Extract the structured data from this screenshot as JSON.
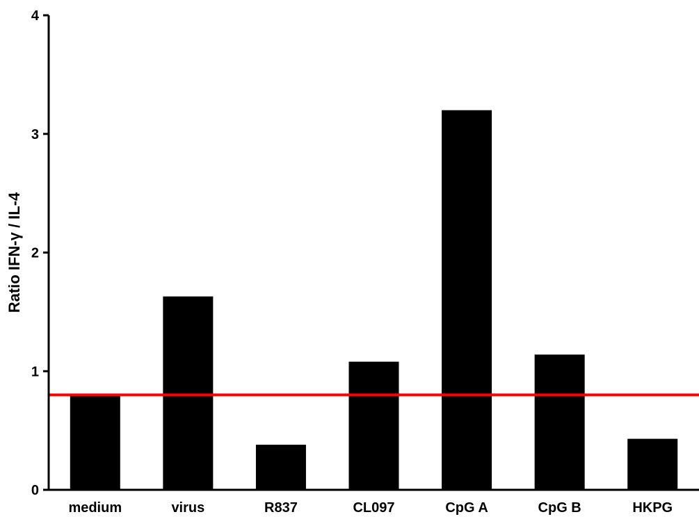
{
  "chart_data": {
    "type": "bar",
    "title": "",
    "xlabel": "",
    "ylabel": "Ratio IFN-γ / IL-4",
    "categories": [
      "medium",
      "virus",
      "R837",
      "CL097",
      "CpG A",
      "CpG B",
      "HKPG"
    ],
    "values": [
      0.81,
      1.63,
      0.38,
      1.08,
      3.2,
      1.14,
      0.43
    ],
    "ylim": [
      0,
      4
    ],
    "yticks": [
      "0",
      "1",
      "2",
      "3",
      "4"
    ],
    "reference_line": {
      "value": 0.8,
      "color": "#ff0000"
    },
    "bar_color": "#000000",
    "grid": false,
    "legend": "none"
  }
}
